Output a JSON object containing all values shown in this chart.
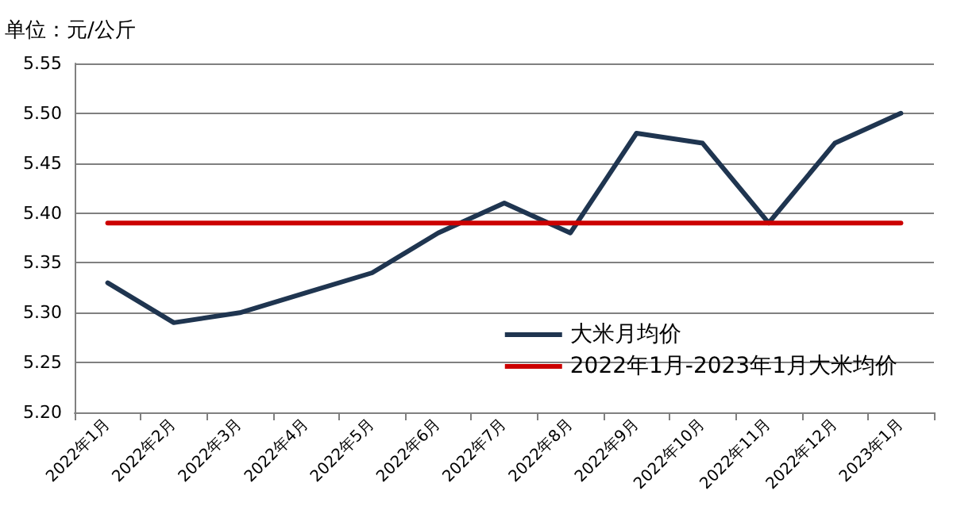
{
  "chart_data": {
    "type": "line",
    "ylabel": "单位：元/公斤",
    "categories": [
      "2022年1月",
      "2022年2月",
      "2022年3月",
      "2022年4月",
      "2022年5月",
      "2022年6月",
      "2022年7月",
      "2022年8月",
      "2022年9月",
      "2022年10月",
      "2022年11月",
      "2022年12月",
      "2023年1月"
    ],
    "series": [
      {
        "name": "大米月均价",
        "color": "#1f3550",
        "values": [
          5.33,
          5.29,
          5.3,
          5.32,
          5.34,
          5.38,
          5.41,
          5.38,
          5.48,
          5.47,
          5.39,
          5.47,
          5.5
        ]
      },
      {
        "name": "2022年1月-2023年1月大米均价",
        "color": "#cc0000",
        "values": [
          5.39,
          5.39,
          5.39,
          5.39,
          5.39,
          5.39,
          5.39,
          5.39,
          5.39,
          5.39,
          5.39,
          5.39,
          5.39
        ]
      }
    ],
    "ylim": [
      5.2,
      5.55
    ],
    "yticks": [
      {
        "value": 5.2,
        "label": "5.20"
      },
      5.25,
      {
        "value": 5.3,
        "label": "5.30"
      },
      5.35,
      {
        "value": 5.4,
        "label": "5.40"
      },
      5.45,
      {
        "value": 5.5,
        "label": "5.50"
      },
      5.55
    ],
    "grid": "y",
    "legend": "bottom right",
    "marker": "none",
    "line_style": "solid"
  }
}
